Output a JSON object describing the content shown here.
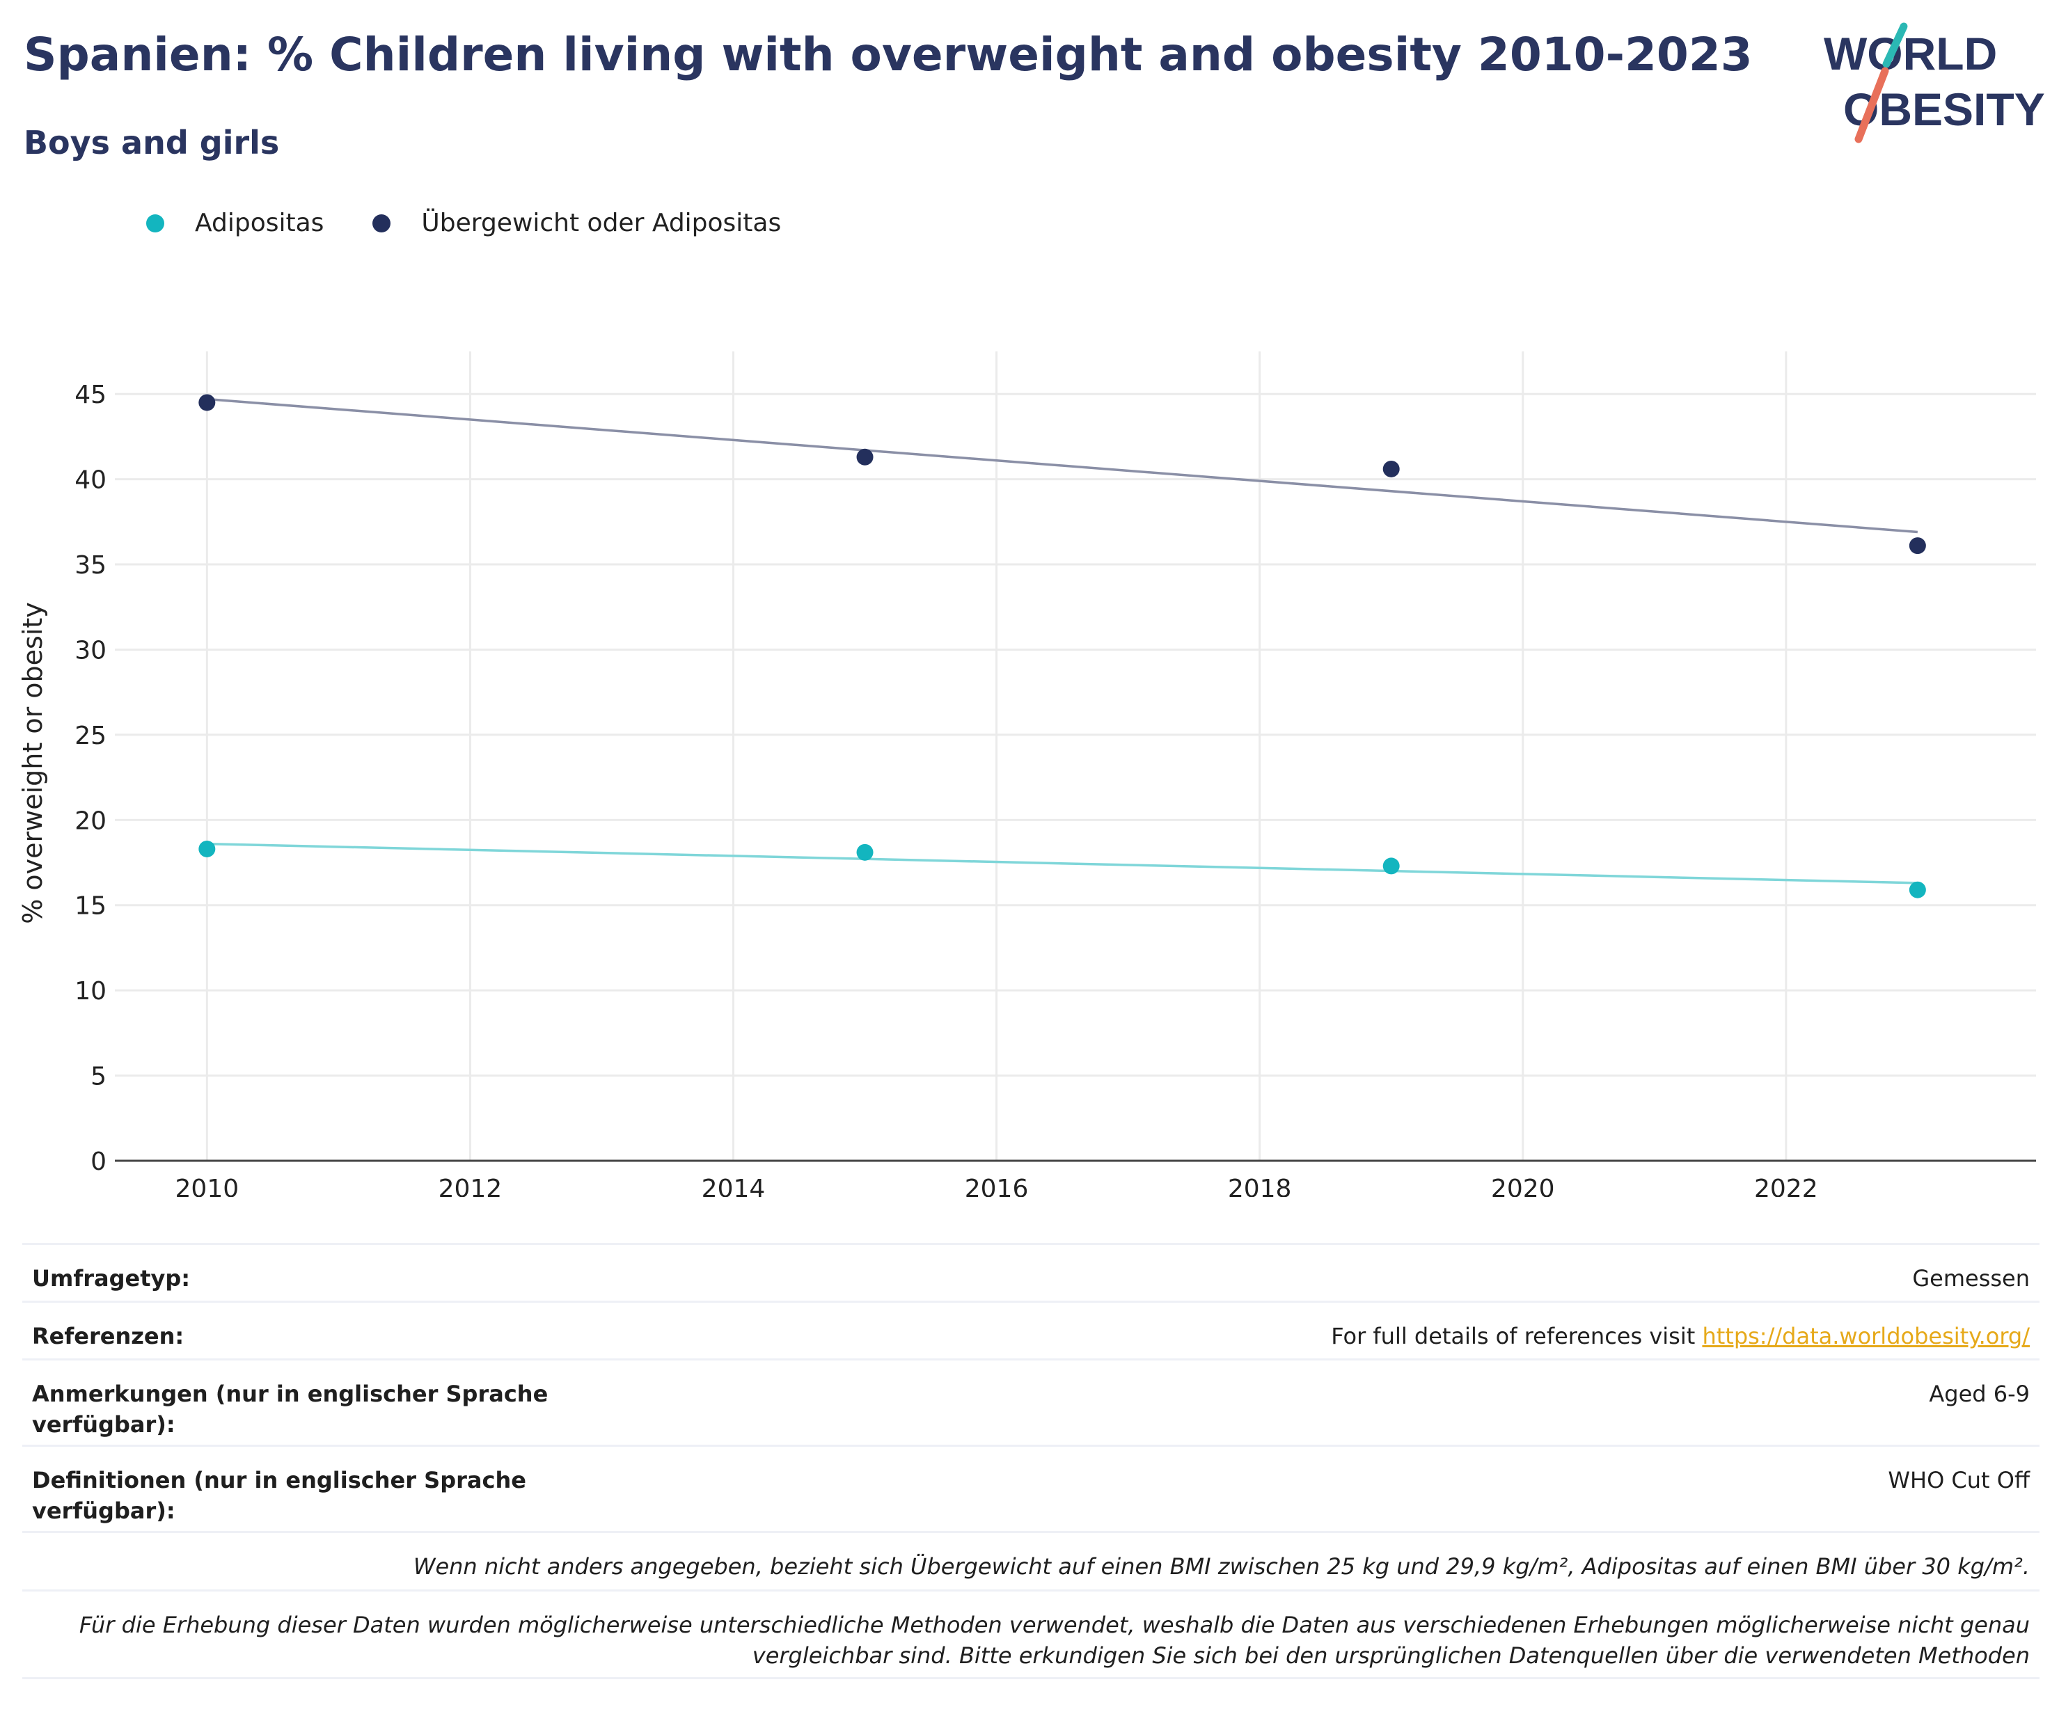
{
  "header": {
    "title": "Spanien: % Children living with overweight and obesity 2010-2023",
    "subtitle": "Boys and girls"
  },
  "logo": {
    "line1": "WORLD",
    "line2": "OBESITY",
    "accent_teal": "#2bb8b4",
    "accent_red": "#e8705a"
  },
  "colors": {
    "adipositas": "#13b5bf",
    "overweight": "#232f5c",
    "navy": "#2a3560"
  },
  "chart_data": {
    "type": "scatter",
    "ylabel": "% overweight or obesity",
    "xlabel": "",
    "xlim": [
      2009.3,
      2023.9
    ],
    "ylim": [
      0,
      47.5
    ],
    "xticks": [
      2010,
      2012,
      2014,
      2016,
      2018,
      2020,
      2022
    ],
    "yticks": [
      0,
      5,
      10,
      15,
      20,
      25,
      30,
      35,
      40,
      45
    ],
    "grid": true,
    "legend": "top-left",
    "series": [
      {
        "name": "Adipositas",
        "color": "#13b5bf",
        "trend_color": "#7fd6d9",
        "x": [
          2010,
          2015,
          2019,
          2023
        ],
        "y": [
          18.3,
          18.1,
          17.3,
          15.9
        ],
        "trend": [
          [
            2010,
            18.6
          ],
          [
            2023,
            16.3
          ]
        ]
      },
      {
        "name": "Übergewicht oder Adipositas",
        "color": "#232f5c",
        "trend_color": "#8a8fa6",
        "x": [
          2010,
          2015,
          2019,
          2023
        ],
        "y": [
          44.5,
          41.3,
          40.6,
          36.1
        ],
        "trend": [
          [
            2010,
            44.7
          ],
          [
            2023,
            36.9
          ]
        ]
      }
    ]
  },
  "info": {
    "survey_label": "Umfragetyp:",
    "survey_value": "Gemessen",
    "refs_label": "Referenzen:",
    "refs_text": "For full details of references visit ",
    "refs_link": "https://data.worldobesity.org/",
    "notes_label": "Anmerkungen (nur in englischer Sprache verfügbar):",
    "notes_value": "Aged 6-9",
    "defs_label": "Definitionen (nur in englischer Sprache verfügbar):",
    "defs_value": "WHO Cut Off",
    "note1": "Wenn nicht anders angegeben, bezieht sich Übergewicht auf einen BMI zwischen 25 kg und 29,9 kg/m², Adipositas auf einen BMI über 30 kg/m².",
    "note2": "Für die Erhebung dieser Daten wurden möglicherweise unterschiedliche Methoden verwendet, weshalb die Daten aus verschiedenen Erhebungen möglicherweise nicht genau vergleichbar sind. Bitte erkundigen Sie sich bei den ursprünglichen Datenquellen über die verwendeten Methoden"
  }
}
